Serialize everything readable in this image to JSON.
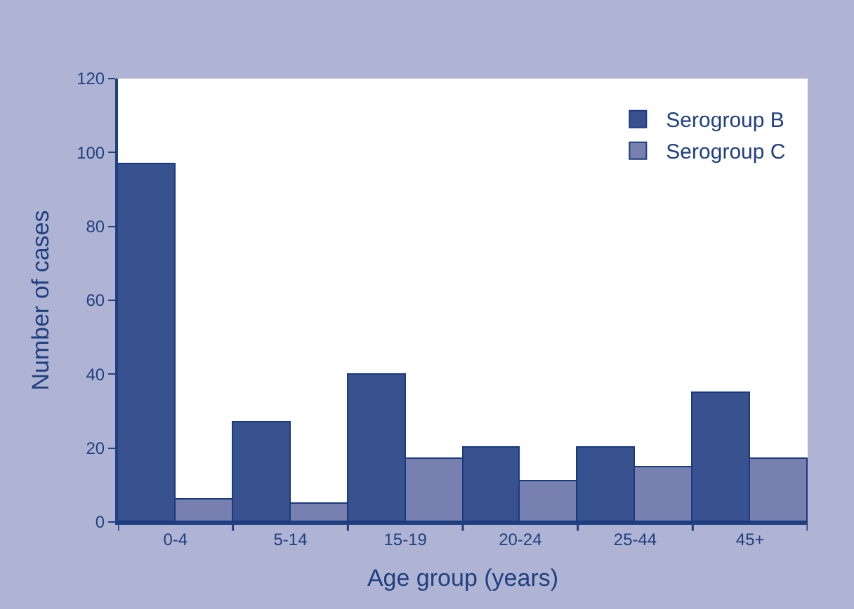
{
  "chart_data": {
    "type": "bar",
    "xlabel": "Age group (years)",
    "ylabel": "Number of cases",
    "categories": [
      "0-4",
      "5-14",
      "15-19",
      "20-24",
      "25-44",
      "45+"
    ],
    "series": [
      {
        "name": "Serogroup B",
        "color": "#38528f",
        "values": [
          97,
          27,
          40,
          20,
          20,
          35
        ]
      },
      {
        "name": "Serogroup C",
        "color": "#7880b0",
        "values": [
          6,
          5,
          17,
          11,
          15,
          17
        ]
      }
    ],
    "ylim": [
      0,
      120
    ],
    "yticks": [
      0,
      20,
      40,
      60,
      80,
      100,
      120
    ],
    "legend": "top right"
  }
}
